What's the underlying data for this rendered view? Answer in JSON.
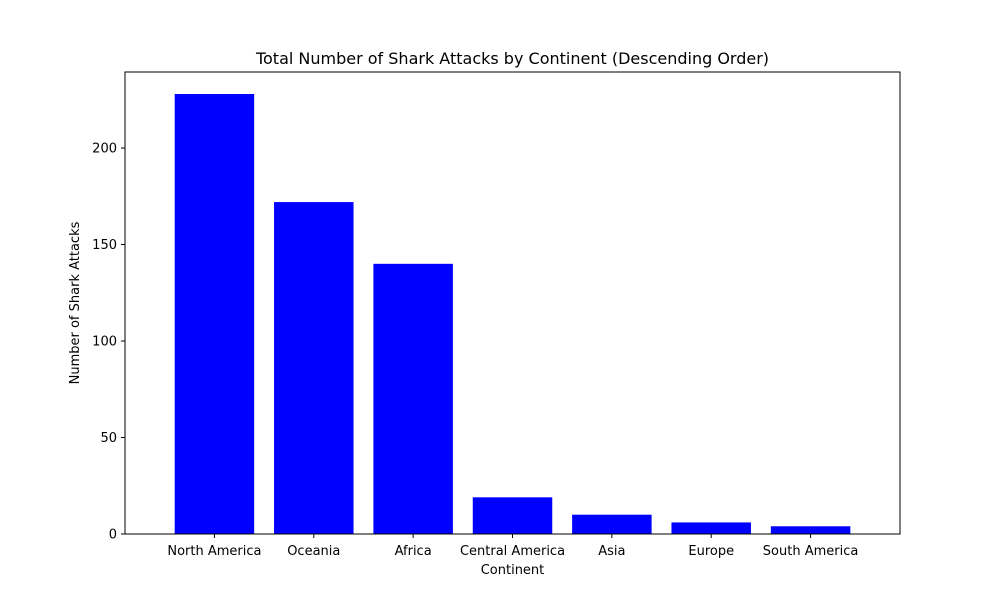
{
  "chart_data": {
    "type": "bar",
    "title": "Total Number of Shark Attacks by Continent (Descending Order)",
    "xlabel": "Continent",
    "ylabel": "Number of Shark Attacks",
    "categories": [
      "North America",
      "Oceania",
      "Africa",
      "Central America",
      "Asia",
      "Europe",
      "South America"
    ],
    "values": [
      228,
      172,
      140,
      19,
      10,
      6,
      4
    ],
    "ylim": [
      0,
      239.4
    ],
    "yticks": [
      0,
      50,
      100,
      150,
      200
    ],
    "bar_color": "#0000ff",
    "grid": false,
    "legend": "none"
  }
}
